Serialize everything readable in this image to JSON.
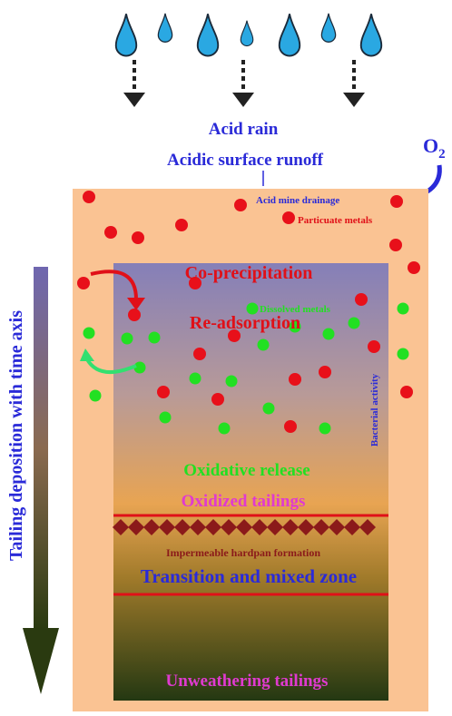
{
  "rain_label": "Acid rain",
  "runoff_label": "Acidic surface runoff",
  "oxygen": {
    "base": "O",
    "sub": "2"
  },
  "amd_label": "Acid mine drainage",
  "particulate_label": "Particuate metals",
  "coprecipitation_label": "Co-precipitation",
  "dissolved_label": "Dissolved metals",
  "readsorption_label": "Re-adsorption",
  "bacterial_label": "Bacterial activity",
  "oxidative_label": "Oxidative release",
  "oxidized_label": "Oxidized tailings",
  "hardpan_label": "Impermeable hardpan formation",
  "transition_label": "Transition and mixed zone",
  "unweathering_label": "Unweathering tailings",
  "time_axis_label": "Tailing deposition with time axis"
}
